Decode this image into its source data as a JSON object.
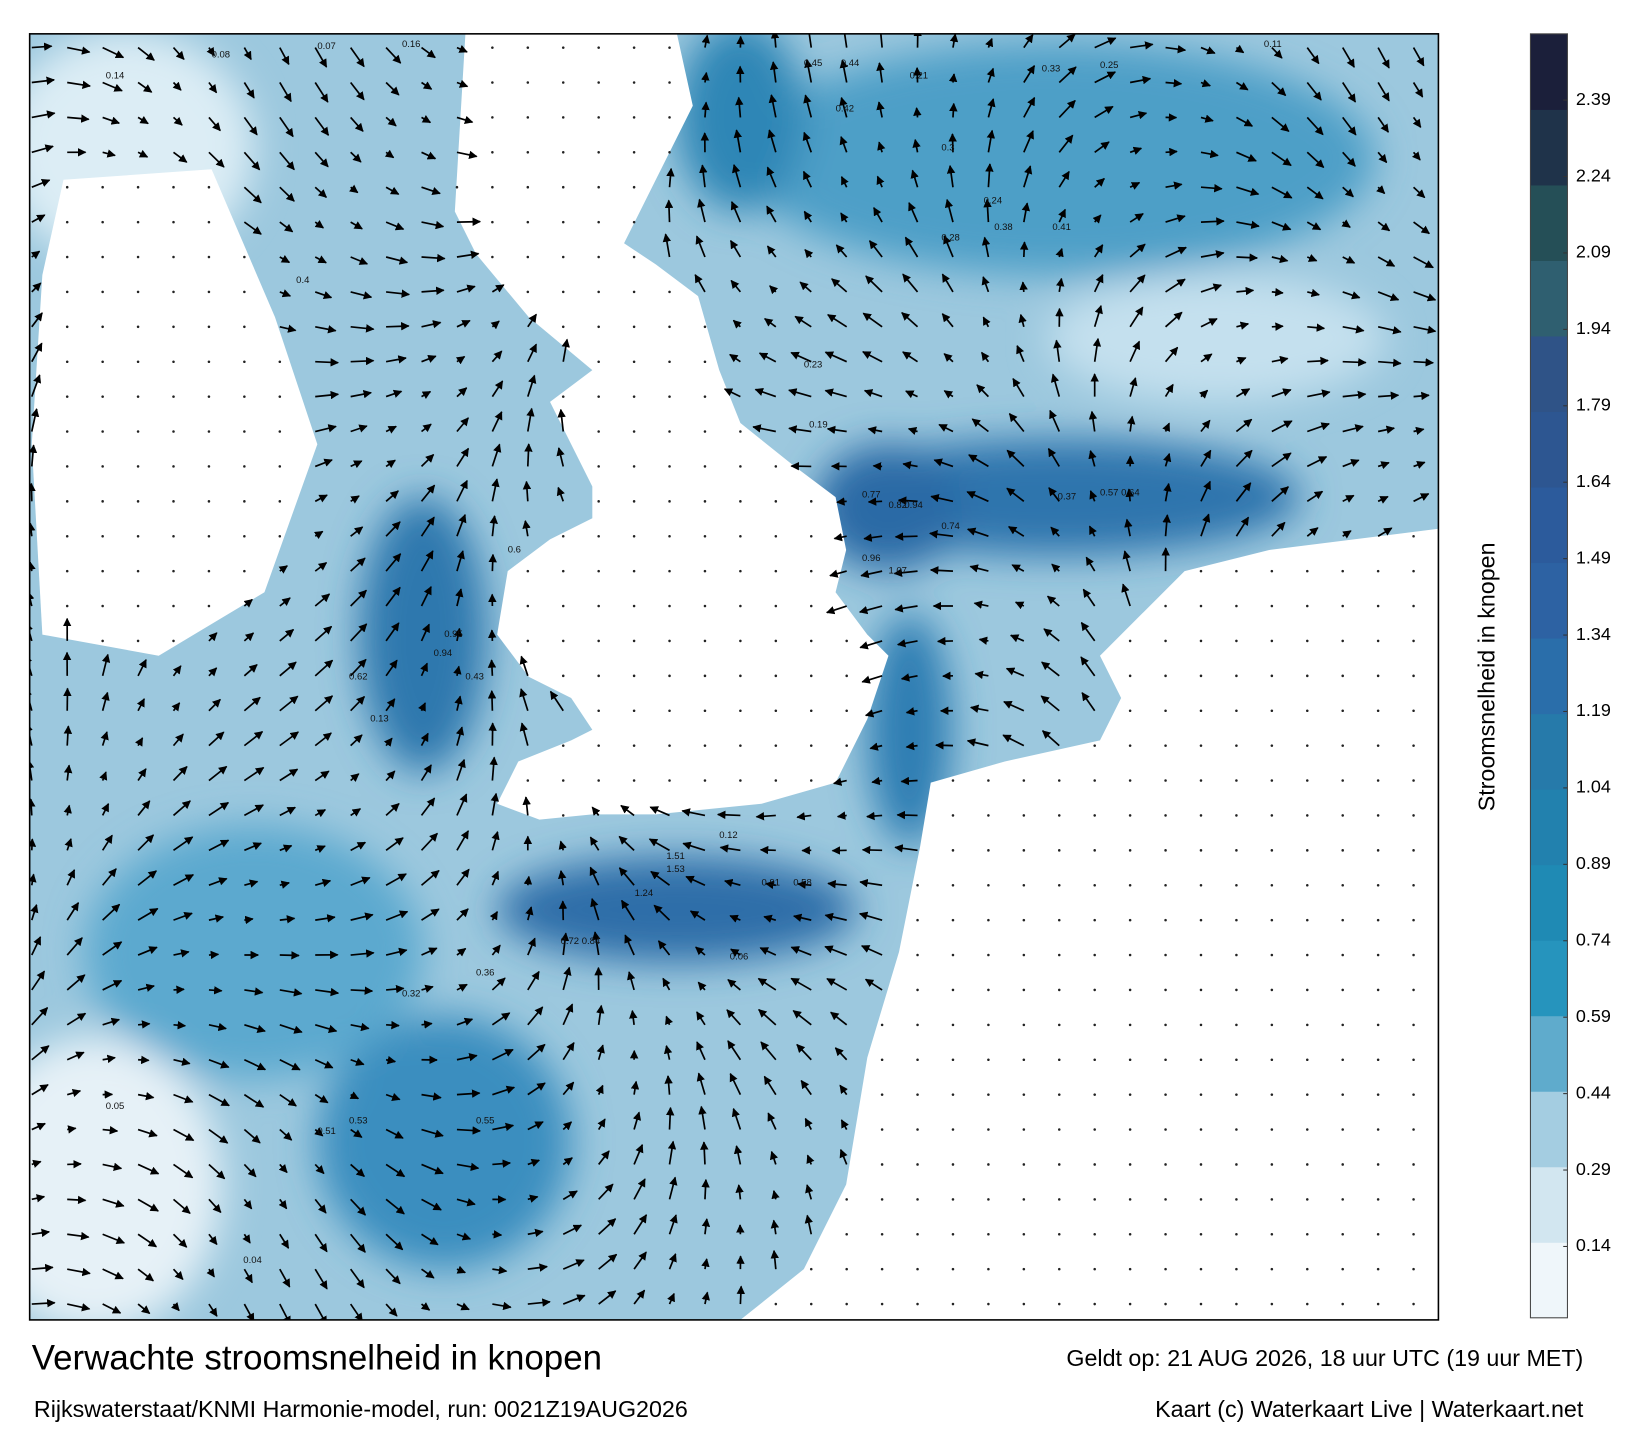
{
  "title": "Verwachte stroomsnelheid in knopen",
  "subtitle": "Rijkswaterstaat/KNMI Harmonie-model, run: 0021Z19AUG2026",
  "valid_time": "Geldt op: 21 AUG 2026, 18 uur UTC (19 uur MET)",
  "credit": "Kaart (c) Waterkaart Live | Waterkaart.net",
  "colorbar": {
    "label": "Stroomsnelheid in knopen",
    "range": [
      0,
      2.52
    ],
    "ticks": [
      0.14,
      0.29,
      0.44,
      0.59,
      0.74,
      0.89,
      1.04,
      1.19,
      1.34,
      1.49,
      1.64,
      1.79,
      1.94,
      2.09,
      2.24,
      2.39
    ],
    "colors": [
      "#eff6fa",
      "#d2e6f0",
      "#a4cde1",
      "#5fabcc",
      "#2694bd",
      "#1f8ab4",
      "#2281ae",
      "#267aaa",
      "#2a6eaa",
      "#2d62a3",
      "#2c5b9c",
      "#2d5691",
      "#2f5387",
      "#2f5f70",
      "#254f57",
      "#1f334a",
      "#1b1f3a"
    ]
  },
  "map_labels": [
    "0.08",
    "0.14",
    "0.11",
    "0.16",
    "0.07",
    "0.45",
    "0.44",
    "0.33",
    "0.25",
    "0.42",
    "0.21",
    "0.3",
    "0.24",
    "0.38",
    "0.41",
    "0.28",
    "0.37",
    "0.57",
    "0.64",
    "0.77",
    "0.82",
    "0.94",
    "0.74",
    "1.07",
    "0.96",
    "0.6",
    "0.95",
    "0.94",
    "0.62",
    "1.51",
    "1.53",
    "1.24",
    "0.91",
    "0.58",
    "0.72",
    "0.84",
    "0.36",
    "0.55",
    "0.53",
    "0.43",
    "0.04",
    "0.05",
    "0.23",
    "0.19",
    "0.13",
    "0.06",
    "0.12",
    "0.4",
    "0.51",
    "0.32"
  ]
}
